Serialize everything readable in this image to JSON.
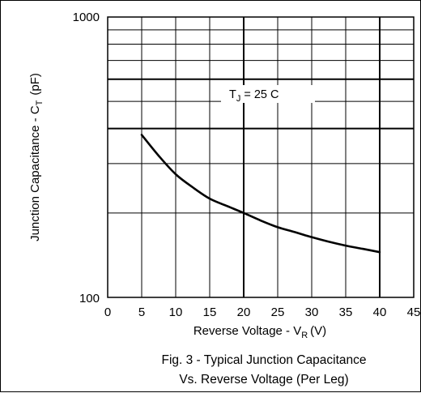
{
  "chart_data": {
    "type": "line",
    "xlabel_main": "Reverse Voltage - V",
    "xlabel_sub": "R",
    "xlabel_unit": "(V)",
    "ylabel_main": "Junction Capacitance - C",
    "ylabel_sub": "T",
    "ylabel_unit": "(pF)",
    "annotation_main": "T",
    "annotation_sub": "J",
    "annotation_rest": "= 25  C",
    "caption_line1": "Fig. 3 - Typical Junction Capacitance",
    "caption_line2": "Vs.  Reverse  Voltage (Per Leg)",
    "xlim": [
      0,
      45
    ],
    "x_ticks": [
      "0",
      "5",
      "10",
      "15",
      "20",
      "25",
      "30",
      "35",
      "40",
      "45"
    ],
    "ylim": [
      100,
      1000
    ],
    "y_scale": "log",
    "y_ticks": [
      "100",
      "1000"
    ],
    "grid": true,
    "series": [
      {
        "x": [
          5,
          7.5,
          10,
          12.5,
          15,
          17.5,
          20,
          22.5,
          25,
          27.5,
          30,
          32.5,
          35,
          37.5,
          40
        ],
        "y": [
          380,
          320,
          275,
          247,
          225,
          212,
          200,
          188,
          178,
          171,
          164,
          158,
          153,
          149,
          145
        ]
      }
    ]
  }
}
